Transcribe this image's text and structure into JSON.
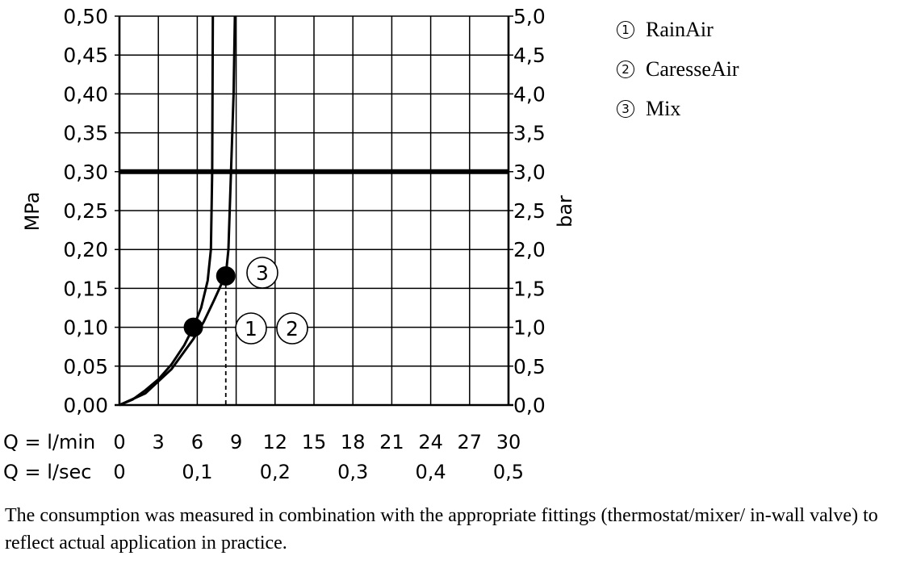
{
  "chart_data": {
    "type": "line",
    "ylabel_left": "MPa",
    "ylabel_right": "bar",
    "yticks_left": [
      "0,00",
      "0,05",
      "0,10",
      "0,15",
      "0,20",
      "0,25",
      "0,30",
      "0,35",
      "0,40",
      "0,45",
      "0,50"
    ],
    "yticks_right": [
      "0,0",
      "0,5",
      "1,0",
      "1,5",
      "2,0",
      "2,5",
      "3,0",
      "3,5",
      "4,0",
      "4,5",
      "5,0"
    ],
    "ylim": [
      0,
      0.5
    ],
    "xlim": [
      0,
      30
    ],
    "xlabel_1": "Q = l/min",
    "xticks_1": [
      "0",
      "3",
      "6",
      "9",
      "12",
      "15",
      "18",
      "21",
      "24",
      "27",
      "30"
    ],
    "xlabel_2": "Q = l/sec",
    "xticks_2": [
      "0",
      "0,1",
      "0,2",
      "0,3",
      "0,4",
      "0,5"
    ],
    "reference_line": {
      "y": 0.3
    },
    "dashed_marker": {
      "x": 8.2
    },
    "grid": true,
    "series": [
      {
        "label": "1",
        "x": [
          0,
          1,
          2,
          3,
          4,
          5,
          5.7,
          6.3,
          6.8,
          7.05,
          7.15,
          7.2
        ],
        "y": [
          0,
          0.007,
          0.019,
          0.033,
          0.052,
          0.077,
          0.1,
          0.125,
          0.16,
          0.2,
          0.3,
          0.5
        ],
        "marker": {
          "x": 5.7,
          "y": 0.1
        }
      },
      {
        "label": "3",
        "x": [
          0,
          2,
          4,
          5.7,
          6.5,
          7.3,
          7.9,
          8.2,
          8.4,
          8.6,
          8.8,
          8.9
        ],
        "y": [
          0,
          0.015,
          0.046,
          0.085,
          0.107,
          0.135,
          0.157,
          0.166,
          0.2,
          0.3,
          0.4,
          0.5
        ],
        "marker": {
          "x": 8.2,
          "y": 0.166
        }
      }
    ],
    "callouts": [
      "3",
      "1",
      "2"
    ],
    "legend": [
      {
        "num": "1",
        "name": "RainAir"
      },
      {
        "num": "2",
        "name": "CaresseAir"
      },
      {
        "num": "3",
        "name": "Mix"
      }
    ]
  },
  "note": "The consumption was measured in combination with the appropriate fittings (thermostat/mixer/ in-wall valve) to reflect actual application in practice."
}
